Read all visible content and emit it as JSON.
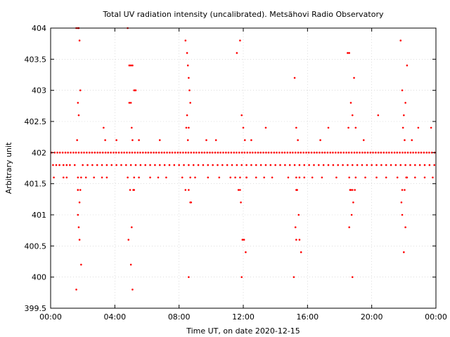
{
  "chart_data": {
    "type": "scatter",
    "title": "Total UV radiation intensity (uncalibrated). Metsähovi Radio Observatory",
    "xlabel": "Time UT, on date 2020-12-15",
    "ylabel": "Arbitrary unit",
    "xlim": [
      0,
      24
    ],
    "ylim": [
      399.5,
      404
    ],
    "x_ticks": [
      {
        "value": 0,
        "label": "00:00"
      },
      {
        "value": 4,
        "label": "04:00"
      },
      {
        "value": 8,
        "label": "08:00"
      },
      {
        "value": 12,
        "label": "12:00"
      },
      {
        "value": 16,
        "label": "16:00"
      },
      {
        "value": 20,
        "label": "20:00"
      },
      {
        "value": 24,
        "label": "00:00"
      }
    ],
    "y_ticks": [
      {
        "value": 399.5,
        "label": "399.5"
      },
      {
        "value": 400,
        "label": "400"
      },
      {
        "value": 400.5,
        "label": "400.5"
      },
      {
        "value": 401,
        "label": "401"
      },
      {
        "value": 401.5,
        "label": "401.5"
      },
      {
        "value": 402,
        "label": "402"
      },
      {
        "value": 402.5,
        "label": "402.5"
      },
      {
        "value": 403,
        "label": "403"
      },
      {
        "value": 403.5,
        "label": "403.5"
      },
      {
        "value": 404,
        "label": "404"
      }
    ],
    "grid": true,
    "marker_color": "#ff0000",
    "series": [
      {
        "x": [
          0.07,
          0.25,
          0.42,
          0.58,
          0.75,
          0.92,
          1.08,
          1.25,
          1.42,
          1.58,
          1.75,
          1.92,
          2.08,
          2.25,
          2.42,
          2.58,
          2.75,
          2.92,
          3.08,
          3.25,
          3.42,
          3.58,
          3.75,
          3.92,
          4.08,
          4.25,
          4.42,
          4.58,
          4.75,
          4.92,
          5.08,
          5.25,
          5.42,
          5.58,
          5.75,
          5.92,
          6.08,
          6.25,
          6.42,
          6.58,
          6.75,
          6.92,
          7.08,
          7.25,
          7.42,
          7.58,
          7.75,
          7.92,
          8.08,
          8.25,
          8.42,
          8.58,
          8.75,
          8.92,
          9.08,
          9.25,
          9.42,
          9.58,
          9.75,
          9.92,
          10.08,
          10.25,
          10.42,
          10.58,
          10.75,
          10.92,
          11.08,
          11.25,
          11.42,
          11.58,
          11.75,
          11.92,
          12.08,
          12.25,
          12.42,
          12.58,
          12.75,
          12.92,
          13.08,
          13.25,
          13.42,
          13.58,
          13.75,
          13.92,
          14.08,
          14.25,
          14.42,
          14.58,
          14.75,
          14.92,
          15.08,
          15.25,
          15.42,
          15.58,
          15.75,
          15.92,
          16.08,
          16.25,
          16.42,
          16.58,
          16.75,
          16.92,
          17.08,
          17.25,
          17.42,
          17.58,
          17.75,
          17.92,
          18.08,
          18.25,
          18.42,
          18.58,
          18.75,
          18.92,
          19.08,
          19.25,
          19.42,
          19.58,
          19.75,
          19.92,
          20.08,
          20.25,
          20.42,
          20.58,
          20.75,
          20.92,
          21.08,
          21.25,
          21.42,
          21.58,
          21.75,
          21.92,
          22.08,
          22.25,
          22.42,
          22.58,
          22.75,
          22.92,
          23.08,
          23.25,
          23.42,
          23.58,
          23.75,
          23.92,
          0.15,
          0.35,
          0.55,
          0.8,
          1.0,
          1.2,
          1.5,
          2.0,
          2.3,
          2.6,
          2.9,
          3.2,
          3.5,
          3.8,
          4.1,
          4.4,
          4.7,
          5.0,
          5.3,
          5.6,
          5.9,
          6.2,
          6.5,
          6.8,
          7.1,
          7.4,
          7.7,
          8.0,
          8.3,
          8.6,
          8.9,
          9.2,
          9.5,
          9.8,
          10.1,
          10.4,
          10.7,
          11.0,
          11.3,
          11.6,
          11.9,
          12.2,
          12.5,
          12.8,
          13.1,
          13.4,
          13.7,
          14.0,
          14.3,
          14.6,
          14.9,
          15.2,
          15.5,
          15.8,
          16.1,
          16.4,
          16.7,
          17.0,
          17.3,
          17.6,
          17.9,
          18.2,
          18.5,
          18.8,
          19.1,
          19.4,
          19.7,
          20.0,
          20.3,
          20.6,
          20.9,
          21.2,
          21.5,
          21.8,
          22.1,
          22.4,
          22.7,
          23.0,
          23.3,
          23.6,
          23.9,
          0.2,
          0.8,
          1.0,
          1.7,
          1.9,
          2.2,
          2.7,
          3.2,
          3.5,
          4.8,
          5.2,
          5.5,
          6.2,
          6.7,
          7.2,
          8.2,
          8.7,
          9.0,
          9.8,
          10.5,
          11.2,
          11.5,
          11.8,
          12.2,
          12.8,
          13.3,
          13.8,
          14.8,
          15.3,
          15.8,
          16.3,
          16.9,
          17.8,
          18.6,
          19.0,
          19.6,
          20.3,
          20.9,
          21.6,
          22.2,
          22.7,
          23.3,
          23.8,
          1.6,
          1.7,
          1.75,
          1.8,
          1.85,
          1.7,
          1.75,
          1.65,
          1.7,
          1.8,
          1.7,
          1.75,
          1.8,
          1.9,
          1.6,
          4.8,
          4.9,
          5.0,
          5.1,
          5.2,
          5.25,
          5.3,
          4.9,
          5.0,
          5.05,
          5.1,
          5.2,
          4.85,
          5.0,
          5.1,
          5.05,
          8.4,
          8.5,
          8.55,
          8.6,
          8.65,
          8.7,
          8.5,
          8.45,
          8.6,
          8.55,
          8.4,
          8.7,
          8.75,
          8.6,
          11.6,
          11.8,
          11.9,
          12.0,
          12.1,
          12.2,
          11.7,
          11.85,
          11.95,
          12.05,
          12.15,
          11.9,
          15.2,
          15.3,
          15.4,
          15.5,
          15.35,
          15.45,
          15.25,
          15.5,
          15.6,
          15.3,
          15.15,
          18.5,
          18.6,
          18.7,
          18.8,
          18.9,
          19.0,
          18.55,
          18.65,
          18.75,
          18.85,
          18.95,
          18.6,
          18.8,
          21.8,
          21.9,
          22.0,
          22.1,
          22.2,
          21.95,
          22.05,
          22.15,
          21.85,
          21.9,
          22.0,
          22.1,
          3.3,
          3.4,
          4.1,
          5.5,
          6.8,
          9.7,
          10.3,
          12.5,
          13.4,
          16.8,
          17.3,
          19.5,
          20.4,
          22.5,
          22.9,
          23.7,
          1.7,
          1.85,
          4.95,
          5.15,
          8.6,
          11.8,
          15.3,
          15.35,
          18.7,
          18.8,
          21.9,
          22.05
        ],
        "y": [
          402,
          402,
          402,
          402,
          402,
          402,
          402,
          402,
          402,
          402,
          402,
          402,
          402,
          402,
          402,
          402,
          402,
          402,
          402,
          402,
          402,
          402,
          402,
          402,
          402,
          402,
          402,
          402,
          402,
          402,
          402,
          402,
          402,
          402,
          402,
          402,
          402,
          402,
          402,
          402,
          402,
          402,
          402,
          402,
          402,
          402,
          402,
          402,
          402,
          402,
          402,
          402,
          402,
          402,
          402,
          402,
          402,
          402,
          402,
          402,
          402,
          402,
          402,
          402,
          402,
          402,
          402,
          402,
          402,
          402,
          402,
          402,
          402,
          402,
          402,
          402,
          402,
          402,
          402,
          402,
          402,
          402,
          402,
          402,
          402,
          402,
          402,
          402,
          402,
          402,
          402,
          402,
          402,
          402,
          402,
          402,
          402,
          402,
          402,
          402,
          402,
          402,
          402,
          402,
          402,
          402,
          402,
          402,
          402,
          402,
          402,
          402,
          402,
          402,
          402,
          402,
          402,
          402,
          402,
          402,
          402,
          402,
          402,
          402,
          402,
          402,
          402,
          402,
          402,
          402,
          402,
          402,
          402,
          402,
          402,
          402,
          402,
          402,
          402,
          402,
          402,
          402,
          402,
          402,
          401.8,
          401.8,
          401.8,
          401.8,
          401.8,
          401.8,
          401.8,
          401.8,
          401.8,
          401.8,
          401.8,
          401.8,
          401.8,
          401.8,
          401.8,
          401.8,
          401.8,
          401.8,
          401.8,
          401.8,
          401.8,
          401.8,
          401.8,
          401.8,
          401.8,
          401.8,
          401.8,
          401.8,
          401.8,
          401.8,
          401.8,
          401.8,
          401.8,
          401.8,
          401.8,
          401.8,
          401.8,
          401.8,
          401.8,
          401.8,
          401.8,
          401.8,
          401.8,
          401.8,
          401.8,
          401.8,
          401.8,
          401.8,
          401.8,
          401.8,
          401.8,
          401.8,
          401.8,
          401.8,
          401.8,
          401.8,
          401.8,
          401.8,
          401.8,
          401.8,
          401.8,
          401.8,
          401.8,
          401.8,
          401.8,
          401.8,
          401.8,
          401.8,
          401.8,
          401.8,
          401.8,
          401.8,
          401.8,
          401.8,
          401.8,
          401.8,
          401.8,
          401.8,
          401.8,
          401.8,
          401.8,
          401.6,
          401.6,
          401.6,
          401.6,
          401.6,
          401.6,
          401.6,
          401.6,
          401.6,
          401.6,
          401.6,
          401.6,
          401.6,
          401.6,
          401.6,
          401.6,
          401.6,
          401.6,
          401.6,
          401.6,
          401.6,
          401.6,
          401.6,
          401.6,
          401.6,
          401.6,
          401.6,
          401.6,
          401.6,
          401.6,
          401.6,
          401.6,
          401.6,
          401.6,
          401.6,
          401.6,
          401.6,
          401.6,
          401.6,
          401.6,
          401.6,
          401.6,
          401.6,
          404,
          404,
          404,
          403.8,
          403,
          402.8,
          402.6,
          402.2,
          401.4,
          401.2,
          401,
          400.8,
          400.6,
          400.2,
          399.8,
          404,
          403.4,
          403.4,
          403.4,
          403,
          403,
          403,
          402.8,
          402.8,
          402.4,
          402.2,
          401.4,
          400.6,
          400.2,
          399.8,
          400.8,
          403.8,
          403.6,
          403.4,
          403.2,
          403,
          402.8,
          402.6,
          402.4,
          402.4,
          402.2,
          401.4,
          401.2,
          401.2,
          400,
          403.6,
          403.8,
          402.6,
          402.4,
          402.2,
          401.6,
          401.4,
          401.2,
          400.6,
          400.6,
          400.4,
          400,
          403.2,
          402.4,
          402.2,
          401.6,
          401.4,
          401,
          400.8,
          400.6,
          400.4,
          400.6,
          400,
          403.6,
          403.6,
          402.8,
          402.6,
          403.2,
          402.4,
          402.4,
          401.4,
          401,
          401.2,
          401.4,
          400.8,
          400,
          403.8,
          403,
          402.6,
          402.8,
          403.4,
          402.4,
          402.2,
          401.6,
          401.2,
          401,
          400.4,
          400.8,
          402.4,
          402.2,
          402.2,
          402.2,
          402.2,
          402.2,
          402.2,
          402.2,
          402.4,
          402.2,
          402.4,
          402.2,
          402.6,
          402.2,
          402.4,
          402.4,
          401.4,
          401.4,
          401.4,
          401.4,
          401.4,
          401.4,
          401.4,
          401.4,
          401.4,
          401.4,
          401.4,
          401.4
        ]
      }
    ]
  }
}
